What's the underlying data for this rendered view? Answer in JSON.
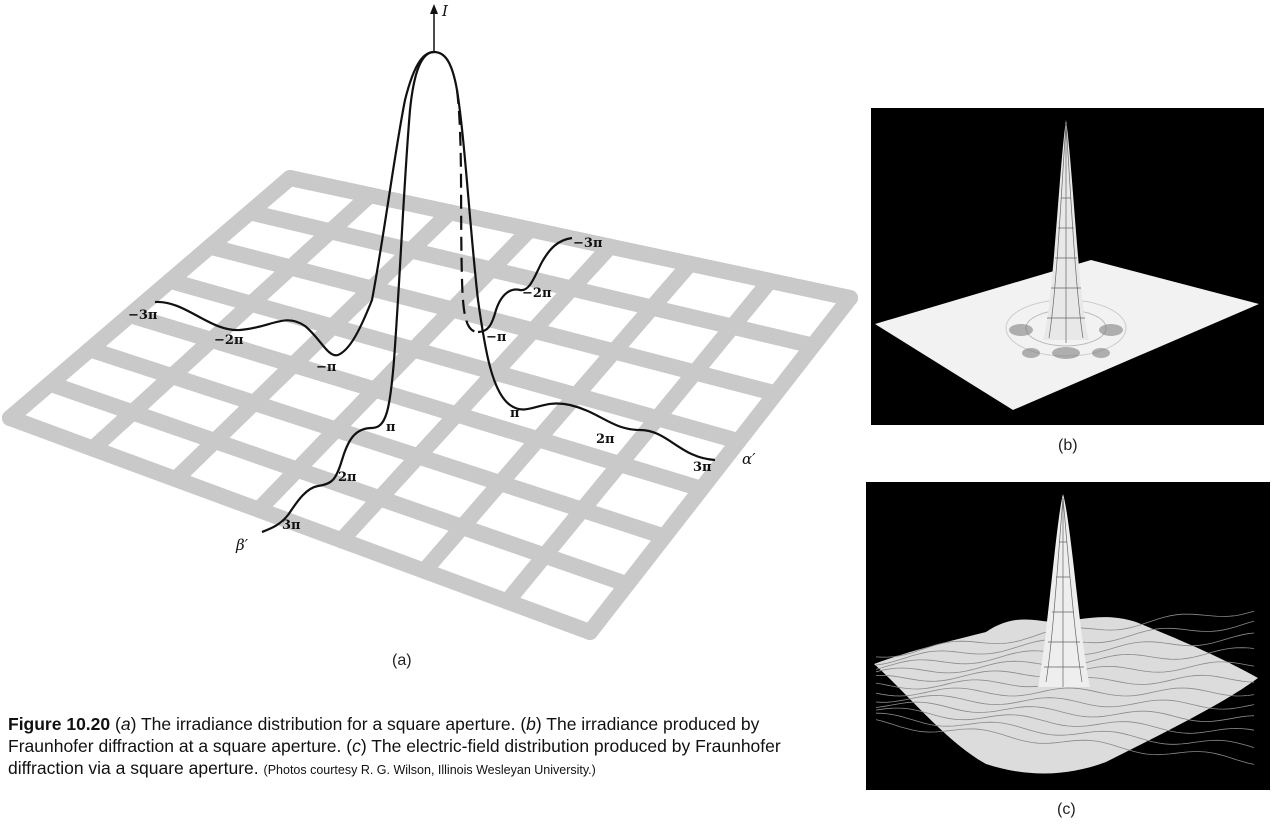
{
  "figure_a": {
    "vertical_axis": "I",
    "alpha_axis": "α′",
    "beta_axis": "β′",
    "left_branch_labels": [
      "−3π",
      "−2π",
      "−π"
    ],
    "right_branch_upper_labels": [
      "−3π",
      "−2π",
      "−π"
    ],
    "right_branch_lower_labels": [
      "π",
      "2π",
      "3π"
    ],
    "front_branch_labels": [
      "π",
      "2π",
      "3π"
    ],
    "caption": "(a)"
  },
  "figure_b": {
    "caption": "(b)"
  },
  "figure_c": {
    "caption": "(c)"
  },
  "caption": {
    "figure_number": "Figure 10.20",
    "part_a_letter": "a",
    "part_a_text": "The irradiance distribution for a square aperture.",
    "part_b_letter": "b",
    "part_b_text": "The irradiance produced by Fraunhofer diffraction at a square aperture.",
    "part_c_letter": "c",
    "part_c_text": "The electric-field distribution produced by Fraunhofer diffraction via a square aperture.",
    "credit": "(Photos courtesy R. G. Wilson, Illinois Wesleyan University.)"
  }
}
